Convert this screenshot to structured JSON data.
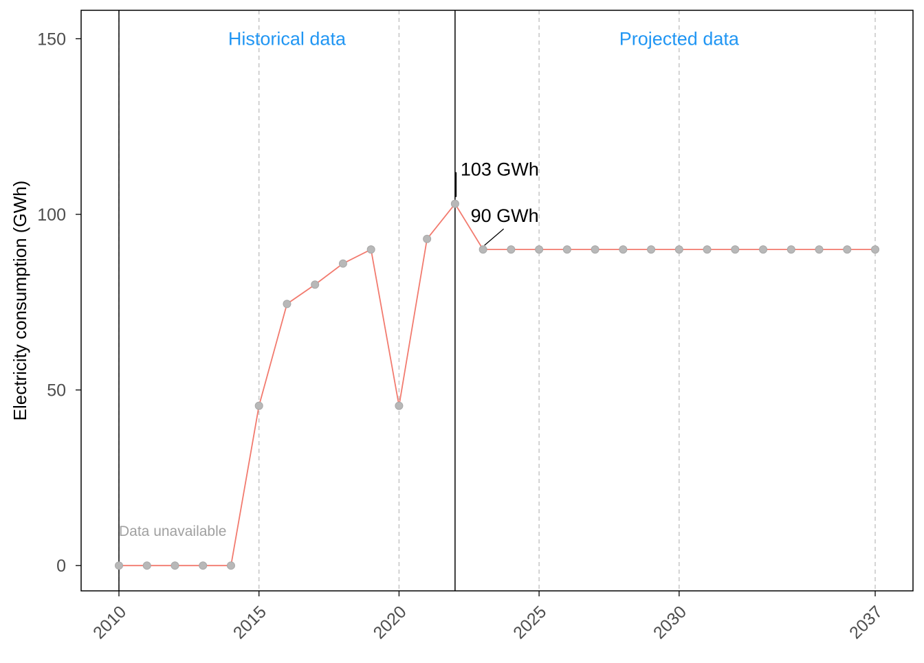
{
  "chart_data": {
    "type": "line",
    "title": "",
    "xlabel": "",
    "ylabel": "Electricity consumption (GWh)",
    "x_ticks": [
      2010,
      2015,
      2020,
      2025,
      2030,
      2037
    ],
    "y_ticks": [
      0,
      50,
      100,
      150
    ],
    "xlim": [
      2008.65,
      2038.35
    ],
    "ylim": [
      -7.2,
      158.1
    ],
    "grid": "dashed vertical lines at x ticks",
    "dividers": [
      2010,
      2022
    ],
    "x": [
      2010,
      2011,
      2012,
      2013,
      2014,
      2015,
      2016,
      2017,
      2018,
      2019,
      2020,
      2021,
      2022,
      2023,
      2024,
      2025,
      2026,
      2027,
      2028,
      2029,
      2030,
      2031,
      2032,
      2033,
      2034,
      2035,
      2036,
      2037
    ],
    "series": [
      {
        "values": [
          0,
          0,
          0,
          0,
          0,
          45.5,
          74.5,
          80,
          86,
          90,
          45.5,
          93,
          103,
          90,
          90,
          90,
          90,
          90,
          90,
          90,
          90,
          90,
          90,
          90,
          90,
          90,
          90,
          90
        ]
      }
    ],
    "region_labels": [
      {
        "text": "Historical data",
        "x": 2016,
        "y": 150
      },
      {
        "text": "Projected data",
        "x": 2030,
        "y": 150
      }
    ],
    "annotations": [
      {
        "text": "103 GWh",
        "x": 2022,
        "y": 103
      },
      {
        "text": "90 GWh",
        "x": 2023,
        "y": 90
      },
      {
        "text": "Data unavailable",
        "x": 2010,
        "y": 10
      }
    ],
    "colors": {
      "line": "#F27A6E",
      "marker_fill": "#B8B8B8",
      "region_label": "#2196F3",
      "axis": "#000000",
      "grid": "#BDBDBD",
      "tick_label": "#4D4D4D",
      "annotation_muted": "#A0A0A0"
    }
  }
}
